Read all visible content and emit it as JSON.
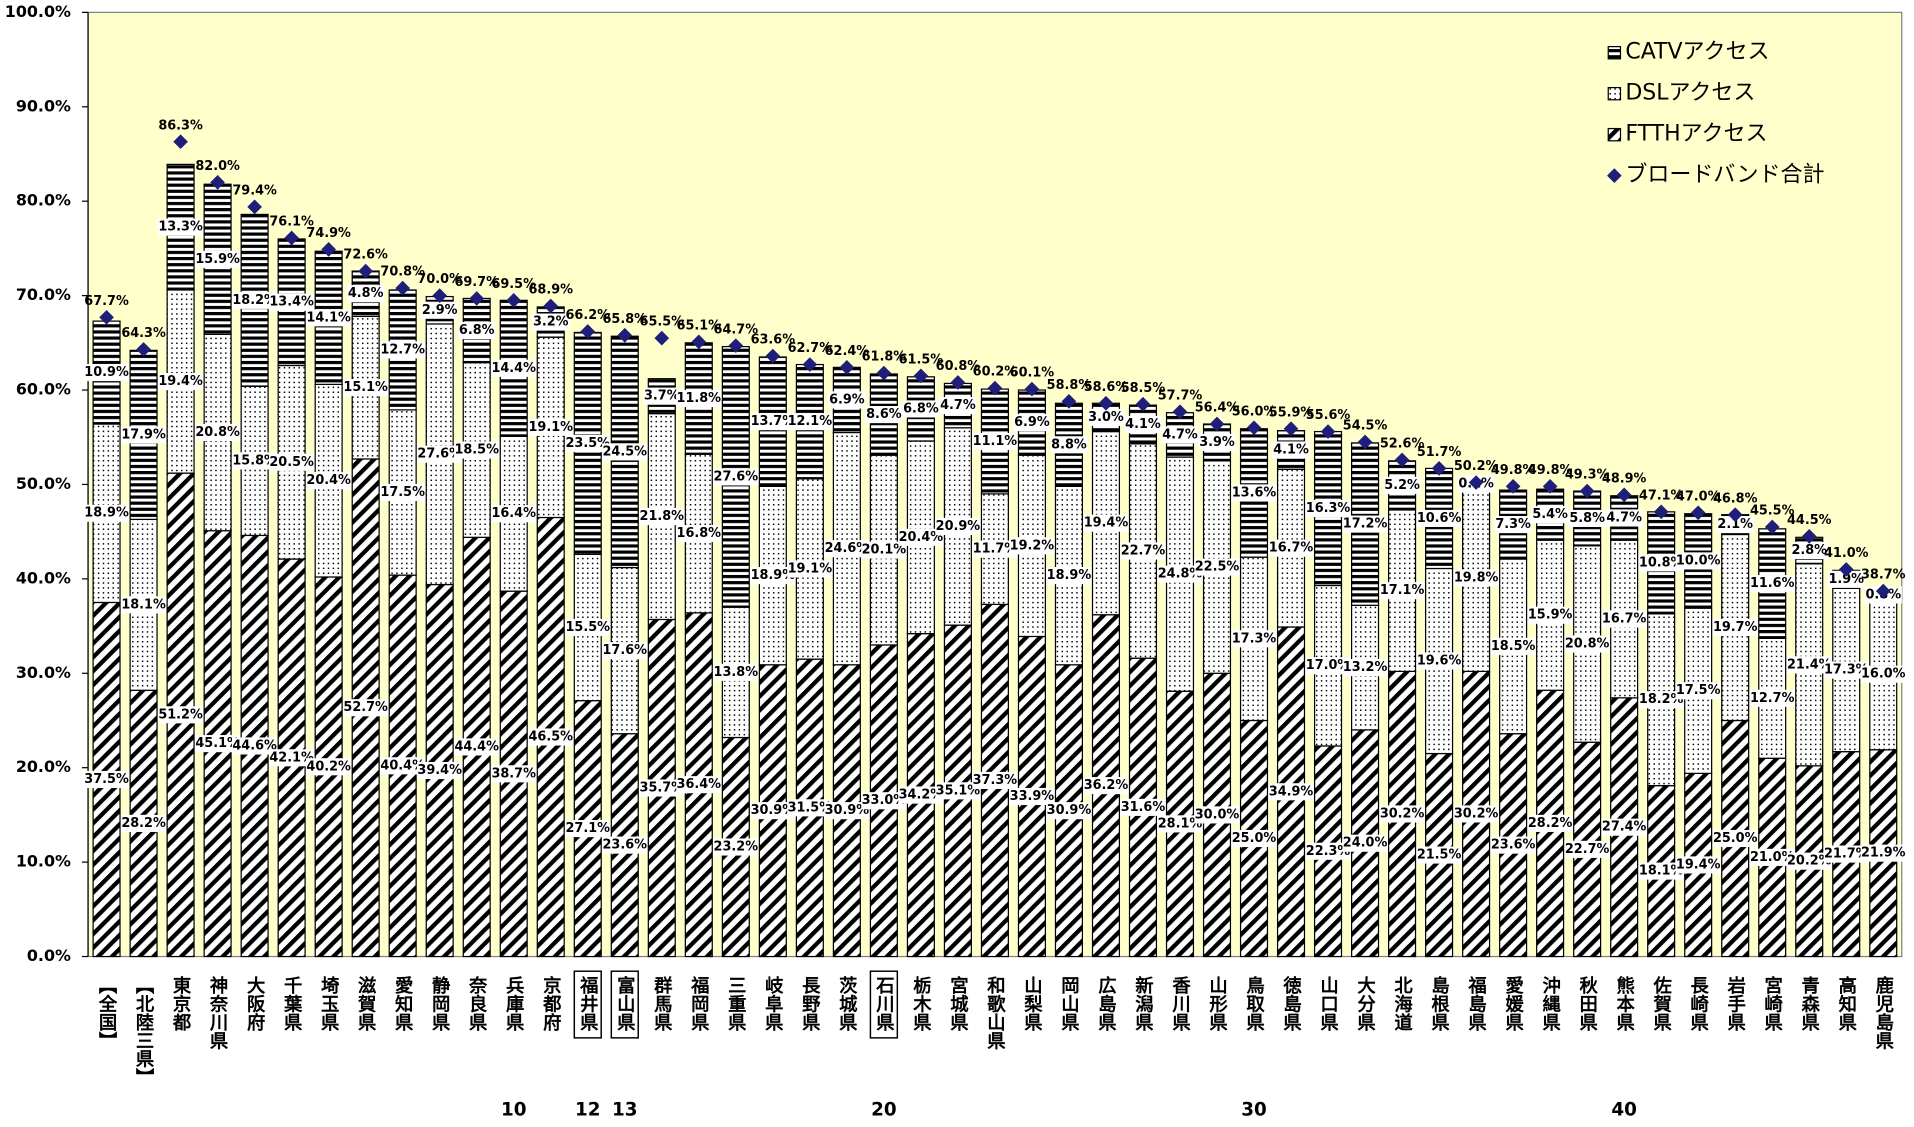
{
  "chart_data": {
    "type": "stacked-bar",
    "categories": [
      "【全国】",
      "【北陸三県】",
      "東京都",
      "神奈川県",
      "大阪府",
      "千葉県",
      "埼玉県",
      "滋賀県",
      "愛知県",
      "静岡県",
      "奈良県",
      "兵庫県",
      "京都府",
      "福井県",
      "富山県",
      "群馬県",
      "福岡県",
      "三重県",
      "岐阜県",
      "長野県",
      "茨城県",
      "石川県",
      "栃木県",
      "宮城県",
      "和歌山県",
      "山梨県",
      "岡山県",
      "広島県",
      "新潟県",
      "香川県",
      "山形県",
      "鳥取県",
      "徳島県",
      "山口県",
      "大分県",
      "北海道",
      "島根県",
      "福島県",
      "愛媛県",
      "沖縄県",
      "秋田県",
      "熊本県",
      "佐賀県",
      "長崎県",
      "岩手県",
      "宮崎県",
      "青森県",
      "高知県",
      "鹿児島県"
    ],
    "ranks": [
      null,
      null,
      null,
      null,
      null,
      null,
      null,
      null,
      null,
      null,
      null,
      10,
      null,
      12,
      13,
      null,
      null,
      null,
      null,
      null,
      null,
      20,
      null,
      null,
      null,
      null,
      null,
      null,
      null,
      null,
      null,
      30,
      null,
      null,
      null,
      null,
      null,
      null,
      null,
      null,
      null,
      40,
      null,
      null,
      null,
      null,
      null,
      null,
      null
    ],
    "series": [
      {
        "name": "CATVアクセス",
        "type": "bar",
        "pattern": "horizontal",
        "color": "#000000",
        "values": [
          10.9,
          17.9,
          13.3,
          15.9,
          18.2,
          13.4,
          14.1,
          4.8,
          12.7,
          2.9,
          6.8,
          14.4,
          3.2,
          23.5,
          24.5,
          3.7,
          11.8,
          27.6,
          13.7,
          12.1,
          6.9,
          8.6,
          6.8,
          4.7,
          11.1,
          6.9,
          8.8,
          3.0,
          4.1,
          4.7,
          3.9,
          13.6,
          4.1,
          16.3,
          17.2,
          5.2,
          10.6,
          0.1,
          7.3,
          5.4,
          5.8,
          4.7,
          10.8,
          10.0,
          2.1,
          11.6,
          2.8,
          1.9,
          0.8
        ],
        "value_labels": [
          "10.9%",
          "17.9%",
          "13.3%",
          "15.9%",
          "18.2%",
          "13.4%",
          "14.1%",
          "4.8%",
          "12.7%",
          "2.9%",
          "6.8%",
          "14.4%",
          "3.2%",
          "23.5%",
          "24.5%",
          "3.7%",
          "11.8%",
          "27.6%",
          "13.7%",
          "12.1%",
          "6.9%",
          "8.6%",
          "6.8%",
          "4.7%",
          "11.1%",
          "6.9%",
          "8.8%",
          "3.0%",
          "4.1%",
          "4.7%",
          "3.9%",
          "13.6%",
          "4.1%",
          "16.3%",
          "17.2%",
          "5.2%",
          "10.6%",
          "0.1%",
          "7.3%",
          "5.4%",
          "5.8%",
          "4.7%",
          "10.8%",
          "10.0%",
          "2.1%",
          "11.6%",
          "2.8%",
          "1.9%",
          "0.8%"
        ]
      },
      {
        "name": "DSLアクセス",
        "type": "bar",
        "pattern": "dots",
        "color": "#000000",
        "values": [
          18.9,
          18.1,
          19.4,
          20.8,
          15.8,
          20.5,
          20.4,
          15.1,
          17.5,
          27.6,
          18.5,
          16.4,
          19.1,
          15.5,
          17.6,
          21.8,
          16.8,
          13.8,
          18.9,
          19.1,
          24.6,
          20.1,
          20.4,
          20.9,
          11.7,
          19.2,
          18.9,
          19.4,
          22.7,
          24.8,
          22.5,
          17.3,
          16.7,
          17.0,
          13.2,
          17.1,
          19.6,
          19.8,
          18.5,
          15.9,
          20.8,
          16.7,
          18.2,
          17.5,
          19.7,
          12.7,
          21.4,
          17.3,
          16.0
        ],
        "value_labels": [
          "18.9%",
          "18.1%",
          "19.4%",
          "20.8%",
          "15.8%",
          "20.5%",
          "20.4%",
          "15.1%",
          "17.5%",
          "27.6%",
          "18.5%",
          "16.4%",
          "19.1%",
          "15.5%",
          "17.6%",
          "21.8%",
          "16.8%",
          "13.8%",
          "18.9%",
          "19.1%",
          "24.6%",
          "20.1%",
          "20.4%",
          "20.9%",
          "11.7%",
          "19.2%",
          "18.9%",
          "19.4%",
          "22.7%",
          "24.8%",
          "22.5%",
          "17.3%",
          "16.7%",
          "17.0%",
          "13.2%",
          "17.1%",
          "19.6%",
          "19.8%",
          "18.5%",
          "15.9%",
          "20.8%",
          "16.7%",
          "18.2%",
          "17.5%",
          "19.7%",
          "12.7%",
          "21.4%",
          "17.3%",
          "16.0%"
        ]
      },
      {
        "name": "FTTHアクセス",
        "type": "bar",
        "pattern": "diagonal",
        "color": "#000000",
        "values": [
          37.5,
          28.2,
          51.2,
          45.1,
          44.6,
          42.1,
          40.2,
          52.7,
          40.4,
          39.4,
          44.4,
          38.7,
          46.5,
          27.1,
          23.6,
          35.7,
          36.4,
          23.2,
          30.9,
          31.5,
          30.9,
          33.0,
          34.2,
          35.1,
          37.3,
          33.9,
          30.9,
          36.2,
          31.6,
          28.1,
          30.0,
          25.0,
          34.9,
          22.3,
          24.0,
          30.2,
          21.5,
          30.2,
          23.6,
          28.2,
          22.7,
          27.4,
          18.1,
          19.4,
          25.0,
          21.0,
          20.2,
          21.7,
          21.9
        ],
        "value_labels": [
          "37.5%",
          "28.2%",
          "51.2%",
          "45.1%",
          "44.6%",
          "42.1%",
          "40.2%",
          "52.7%",
          "40.4%",
          "39.4%",
          "44.4%",
          "38.7%",
          "46.5%",
          "27.1%",
          "23.6%",
          "35.7%",
          "36.4%",
          "23.2%",
          "30.9%",
          "31.5%",
          "30.9%",
          "33.0%",
          "34.2%",
          "35.1%",
          "37.3%",
          "33.9%",
          "30.9%",
          "36.2%",
          "31.6%",
          "28.1%",
          "30.0%",
          "25.0%",
          "34.9%",
          "22.3%",
          "24.0%",
          "30.2%",
          "21.5%",
          "30.2%",
          "23.6%",
          "28.2%",
          "22.7%",
          "27.4%",
          "18.1%",
          "19.4%",
          "25.0%",
          "21.0%",
          "20.2%",
          "21.7%",
          "21.9%"
        ]
      },
      {
        "name": "ブロードバンド合計",
        "type": "marker",
        "color": "#1f1f7a",
        "values": [
          67.7,
          64.3,
          86.3,
          82.0,
          79.4,
          76.1,
          74.9,
          72.6,
          70.8,
          70.0,
          69.7,
          69.5,
          68.9,
          66.2,
          65.8,
          65.5,
          65.1,
          64.7,
          63.6,
          62.7,
          62.4,
          61.8,
          61.5,
          60.8,
          60.2,
          60.1,
          58.8,
          58.6,
          58.5,
          57.7,
          56.4,
          56.0,
          55.9,
          55.6,
          54.5,
          52.6,
          51.7,
          50.2,
          49.8,
          49.8,
          49.3,
          48.9,
          47.1,
          47.0,
          46.8,
          45.5,
          44.5,
          41.0,
          38.7
        ],
        "value_labels": [
          "67.7%",
          "64.3%",
          "86.3%",
          "82.0%",
          "79.4%",
          "76.1%",
          "74.9%",
          "72.6%",
          "70.8%",
          "70.0%",
          "69.7%",
          "69.5%",
          "68.9%",
          "66.2%",
          "65.8%",
          "65.5%",
          "65.1%",
          "64.7%",
          "63.6%",
          "62.7%",
          "62.4%",
          "61.8%",
          "61.5%",
          "60.8%",
          "60.2%",
          "60.1%",
          "58.8%",
          "58.6%",
          "58.5%",
          "57.7%",
          "56.4%",
          "56.0%",
          "55.9%",
          "55.6%",
          "54.5%",
          "52.6%",
          "51.7%",
          "50.2%",
          "49.8%",
          "49.8%",
          "49.3%",
          "48.9%",
          "47.1%",
          "47.0%",
          "46.8%",
          "45.5%",
          "44.5%",
          "41.0%",
          "38.7%"
        ]
      }
    ],
    "ylim": [
      0,
      100
    ],
    "yticks": [
      {
        "value": 0,
        "label": "0.0%"
      },
      {
        "value": 10,
        "label": "10.0%"
      },
      {
        "value": 20,
        "label": "20.0%"
      },
      {
        "value": 30,
        "label": "30.0%"
      },
      {
        "value": 40,
        "label": "40.0%"
      },
      {
        "value": 50,
        "label": "50.0%"
      },
      {
        "value": 60,
        "label": "60.0%"
      },
      {
        "value": 70,
        "label": "70.0%"
      },
      {
        "value": 80,
        "label": "80.0%"
      },
      {
        "value": 90,
        "label": "90.0%"
      },
      {
        "value": 100,
        "label": "100.0%"
      }
    ],
    "grid": false,
    "legend": "upper right",
    "plot_background": "#ffffcc"
  }
}
